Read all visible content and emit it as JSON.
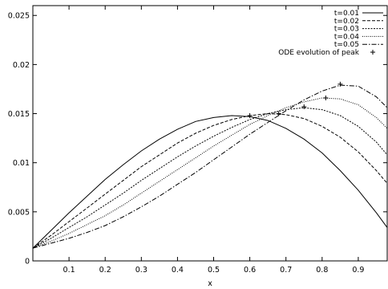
{
  "chart_data": {
    "type": "line",
    "title": "",
    "xlabel": "x",
    "ylabel": "",
    "xlim": [
      0.0,
      0.98
    ],
    "ylim": [
      0.0,
      0.026
    ],
    "x_ticks": [
      "0.1",
      "0.2",
      "0.3",
      "0.4",
      "0.5",
      "0.6",
      "0.7",
      "0.8",
      "0.9"
    ],
    "y_ticks": [
      "0",
      "0.005",
      "0.01",
      "0.015",
      "0.02",
      "0.025"
    ],
    "grid": false,
    "legend_position": "top-right",
    "series": [
      {
        "name": "t=0.01",
        "dash": "solid",
        "x": [
          0.0,
          0.05,
          0.1,
          0.15,
          0.2,
          0.25,
          0.3,
          0.35,
          0.4,
          0.45,
          0.5,
          0.55,
          0.6,
          0.65,
          0.7,
          0.75,
          0.8,
          0.85,
          0.9,
          0.95,
          0.98
        ],
        "y": [
          0.0013,
          0.0031,
          0.0049,
          0.0066,
          0.0083,
          0.0098,
          0.0112,
          0.0124,
          0.0134,
          0.0142,
          0.0146,
          0.0148,
          0.0147,
          0.0143,
          0.0135,
          0.0124,
          0.011,
          0.0092,
          0.0072,
          0.0049,
          0.0034
        ]
      },
      {
        "name": "t=0.02",
        "dash": "4,2",
        "x": [
          0.0,
          0.05,
          0.1,
          0.15,
          0.2,
          0.25,
          0.3,
          0.35,
          0.4,
          0.45,
          0.5,
          0.55,
          0.6,
          0.65,
          0.7,
          0.75,
          0.8,
          0.85,
          0.9,
          0.95,
          0.98
        ],
        "y": [
          0.0013,
          0.0026,
          0.004,
          0.0054,
          0.0068,
          0.0082,
          0.0096,
          0.0108,
          0.012,
          0.013,
          0.0138,
          0.0144,
          0.0148,
          0.015,
          0.0149,
          0.0145,
          0.0137,
          0.0126,
          0.0111,
          0.0092,
          0.0079
        ]
      },
      {
        "name": "t=0.03",
        "dash": "2,1.5",
        "x": [
          0.0,
          0.05,
          0.1,
          0.15,
          0.2,
          0.25,
          0.3,
          0.35,
          0.4,
          0.45,
          0.5,
          0.55,
          0.6,
          0.65,
          0.7,
          0.75,
          0.8,
          0.85,
          0.9,
          0.95,
          0.98
        ],
        "y": [
          0.0013,
          0.0023,
          0.0034,
          0.0045,
          0.0057,
          0.0069,
          0.0082,
          0.0094,
          0.0106,
          0.0117,
          0.0127,
          0.0136,
          0.0144,
          0.015,
          0.0154,
          0.0156,
          0.0154,
          0.0148,
          0.0137,
          0.0121,
          0.0108
        ]
      },
      {
        "name": "t=0.04",
        "dash": "1,1.5",
        "x": [
          0.0,
          0.05,
          0.1,
          0.15,
          0.2,
          0.25,
          0.3,
          0.35,
          0.4,
          0.45,
          0.5,
          0.55,
          0.6,
          0.65,
          0.7,
          0.75,
          0.8,
          0.85,
          0.9,
          0.95,
          0.98
        ],
        "y": [
          0.0013,
          0.002,
          0.0028,
          0.0037,
          0.0046,
          0.0057,
          0.0069,
          0.0081,
          0.0093,
          0.0105,
          0.0117,
          0.0128,
          0.0139,
          0.0148,
          0.0156,
          0.0162,
          0.0166,
          0.0165,
          0.0159,
          0.0146,
          0.0135
        ]
      },
      {
        "name": "t=0.05",
        "dash": "6,2,1.5,2",
        "x": [
          0.0,
          0.05,
          0.1,
          0.15,
          0.2,
          0.25,
          0.3,
          0.35,
          0.4,
          0.45,
          0.5,
          0.55,
          0.6,
          0.65,
          0.7,
          0.75,
          0.8,
          0.85,
          0.9,
          0.95,
          0.98
        ],
        "y": [
          0.0013,
          0.0018,
          0.0023,
          0.0029,
          0.0036,
          0.0045,
          0.0055,
          0.0066,
          0.0078,
          0.009,
          0.0103,
          0.0116,
          0.0129,
          0.0141,
          0.0153,
          0.0164,
          0.0173,
          0.0179,
          0.0178,
          0.0167,
          0.0156
        ]
      }
    ],
    "markers": {
      "name": "ODE evolution of peak",
      "symbol": "+",
      "x": [
        0.6,
        0.68,
        0.75,
        0.81,
        0.85
      ],
      "y": [
        0.0148,
        0.015,
        0.0157,
        0.0166,
        0.018
      ]
    }
  }
}
